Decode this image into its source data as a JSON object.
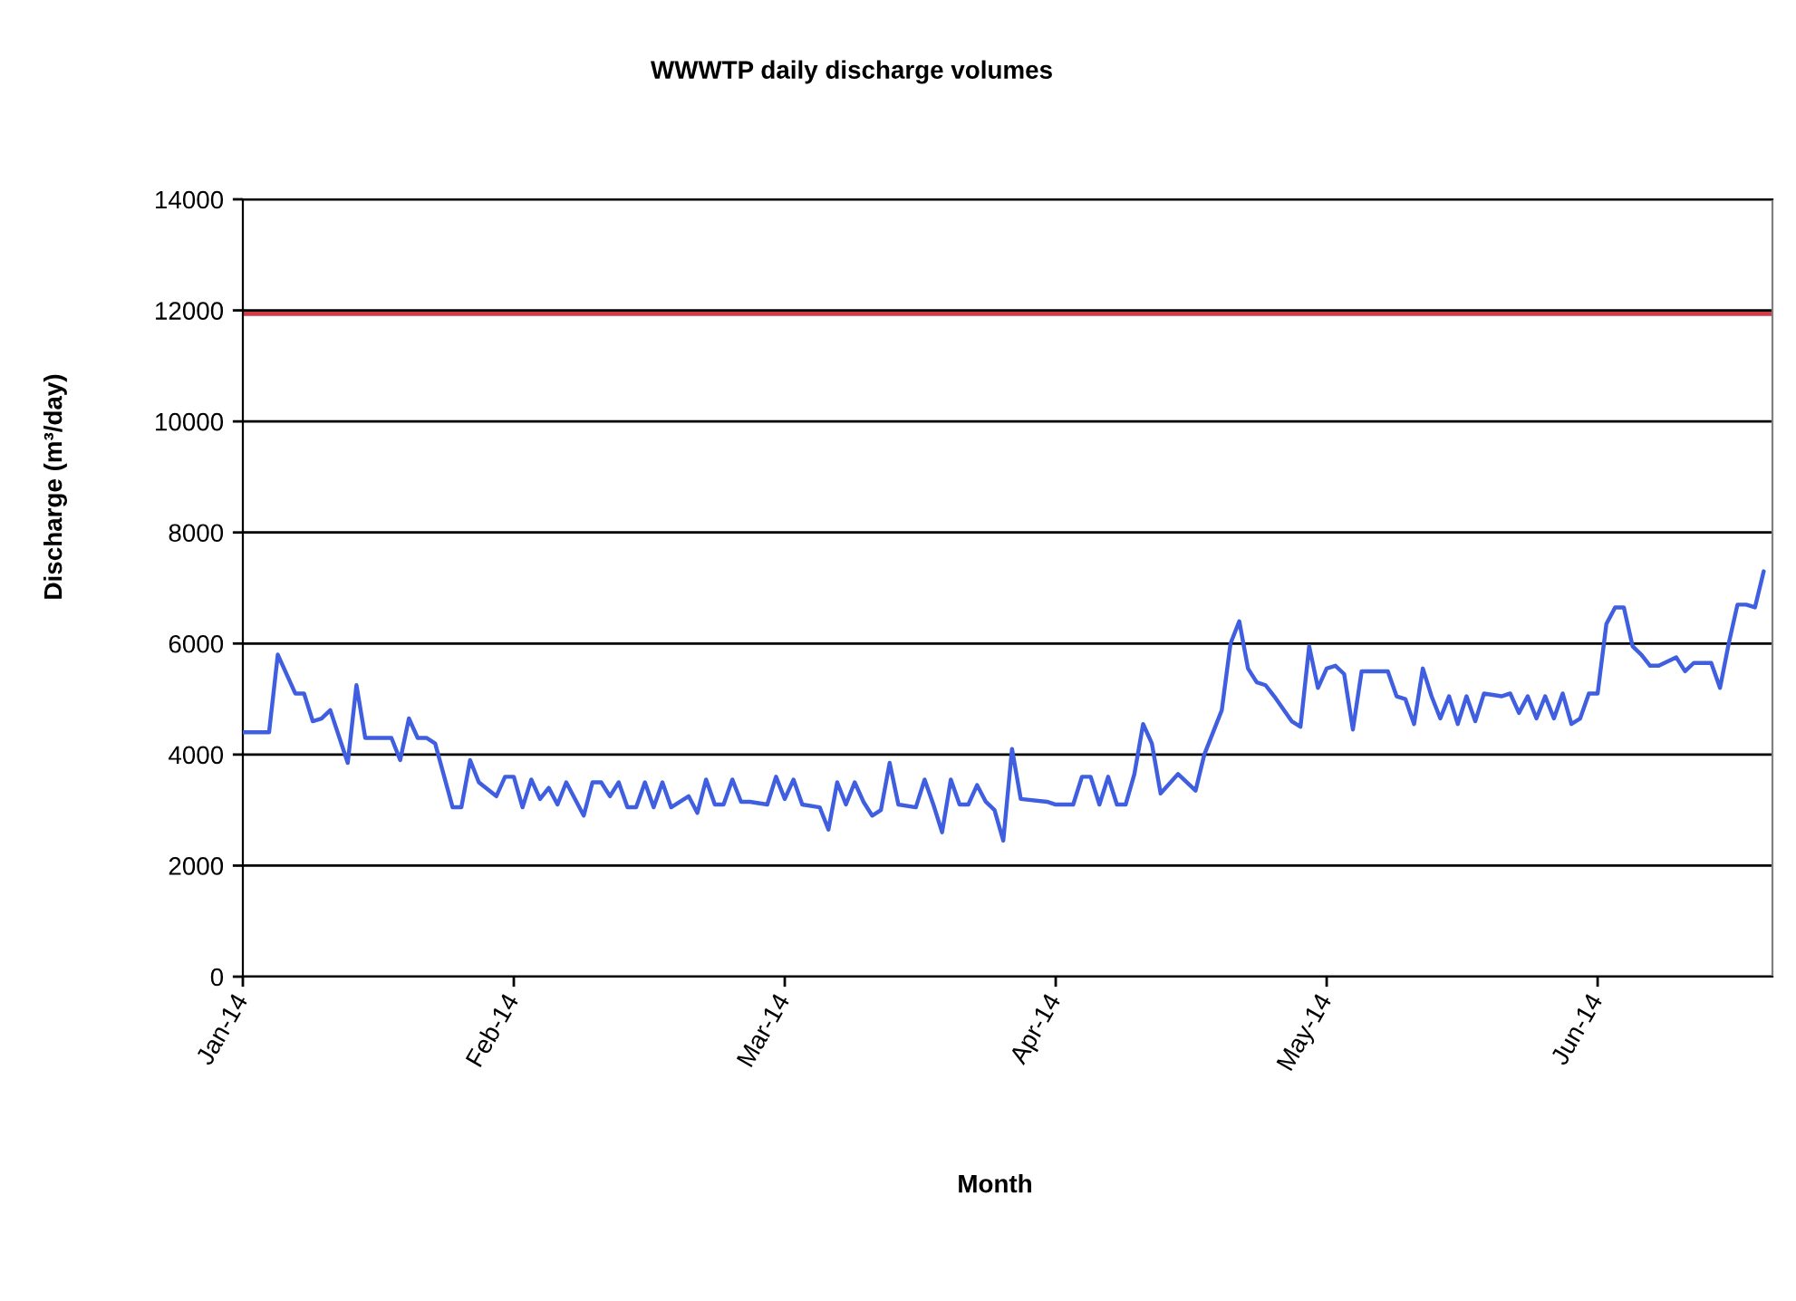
{
  "chart_data": {
    "type": "line",
    "title": "WWWTP daily discharge volumes",
    "xlabel": "Month",
    "ylabel": "Discharge (m³/day)",
    "x": [
      "2014-01-01",
      "2014-01-04",
      "2014-01-05",
      "2014-01-07",
      "2014-01-08",
      "2014-01-09",
      "2014-01-10",
      "2014-01-11",
      "2014-01-13",
      "2014-01-14",
      "2014-01-15",
      "2014-01-18",
      "2014-01-19",
      "2014-01-20",
      "2014-01-21",
      "2014-01-22",
      "2014-01-23",
      "2014-01-25",
      "2014-01-26",
      "2014-01-27",
      "2014-01-28",
      "2014-01-30",
      "2014-01-31",
      "2014-02-01",
      "2014-02-02",
      "2014-02-03",
      "2014-02-04",
      "2014-02-05",
      "2014-02-06",
      "2014-02-07",
      "2014-02-09",
      "2014-02-10",
      "2014-02-11",
      "2014-02-12",
      "2014-02-13",
      "2014-02-14",
      "2014-02-15",
      "2014-02-16",
      "2014-02-17",
      "2014-02-18",
      "2014-02-19",
      "2014-02-21",
      "2014-02-22",
      "2014-02-23",
      "2014-02-24",
      "2014-02-25",
      "2014-02-26",
      "2014-02-27",
      "2014-02-28",
      "2014-03-02",
      "2014-03-03",
      "2014-03-04",
      "2014-03-05",
      "2014-03-06",
      "2014-03-08",
      "2014-03-09",
      "2014-03-10",
      "2014-03-11",
      "2014-03-12",
      "2014-03-13",
      "2014-03-14",
      "2014-03-15",
      "2014-03-16",
      "2014-03-17",
      "2014-03-19",
      "2014-03-20",
      "2014-03-21",
      "2014-03-22",
      "2014-03-23",
      "2014-03-24",
      "2014-03-25",
      "2014-03-26",
      "2014-03-27",
      "2014-03-28",
      "2014-03-29",
      "2014-03-30",
      "2014-03-31",
      "2014-04-03",
      "2014-04-04",
      "2014-04-06",
      "2014-04-07",
      "2014-04-08",
      "2014-04-09",
      "2014-04-10",
      "2014-04-11",
      "2014-04-12",
      "2014-04-13",
      "2014-04-14",
      "2014-04-15",
      "2014-04-16",
      "2014-04-18",
      "2014-04-20",
      "2014-04-21",
      "2014-04-23",
      "2014-04-24",
      "2014-04-25",
      "2014-04-26",
      "2014-04-27",
      "2014-04-28",
      "2014-04-29",
      "2014-05-01",
      "2014-05-02",
      "2014-05-03",
      "2014-05-04",
      "2014-05-05",
      "2014-05-06",
      "2014-05-07",
      "2014-05-08",
      "2014-05-09",
      "2014-05-12",
      "2014-05-13",
      "2014-05-14",
      "2014-05-15",
      "2014-05-16",
      "2014-05-17",
      "2014-05-18",
      "2014-05-19",
      "2014-05-20",
      "2014-05-21",
      "2014-05-22",
      "2014-05-23",
      "2014-05-25",
      "2014-05-26",
      "2014-05-27",
      "2014-05-28",
      "2014-05-29",
      "2014-05-30",
      "2014-05-31",
      "2014-06-01",
      "2014-06-02",
      "2014-06-03",
      "2014-06-04",
      "2014-06-05",
      "2014-06-06",
      "2014-06-07",
      "2014-06-08",
      "2014-06-09",
      "2014-06-10",
      "2014-06-11",
      "2014-06-12",
      "2014-06-14",
      "2014-06-15",
      "2014-06-16",
      "2014-06-18",
      "2014-06-19",
      "2014-06-20",
      "2014-06-21",
      "2014-06-22",
      "2014-06-23",
      "2014-06-24"
    ],
    "series": [
      {
        "color": "#3f5fe0",
        "values": [
          4400,
          4400,
          5800,
          5100,
          5100,
          4600,
          4650,
          4800,
          3850,
          5250,
          4300,
          4300,
          3900,
          4650,
          4300,
          4300,
          4200,
          3050,
          3050,
          3900,
          3500,
          3250,
          3600,
          3600,
          3050,
          3550,
          3200,
          3400,
          3100,
          3500,
          2900,
          3500,
          3500,
          3250,
          3500,
          3050,
          3050,
          3500,
          3050,
          3500,
          3050,
          3250,
          2950,
          3550,
          3100,
          3100,
          3550,
          3150,
          3150,
          3100,
          3600,
          3200,
          3550,
          3100,
          3050,
          2650,
          3500,
          3100,
          3500,
          3150,
          2900,
          3000,
          3850,
          3100,
          3050,
          3550,
          3100,
          2600,
          3550,
          3100,
          3100,
          3450,
          3150,
          3000,
          2450,
          4100,
          3200,
          3150,
          3100,
          3100,
          3600,
          3600,
          3100,
          3600,
          3100,
          3100,
          3650,
          4550,
          4200,
          3300,
          3650,
          3350,
          4000,
          4800,
          6000,
          6400,
          5550,
          5300,
          5250,
          5050,
          4600,
          4500,
          5950,
          5200,
          5550,
          5600,
          5450,
          4450,
          5500,
          5500,
          5050,
          5000,
          4550,
          5550,
          5050,
          4650,
          5050,
          4550,
          5050,
          4600,
          5100,
          5050,
          5100,
          4750,
          5050,
          4650,
          5050,
          4650,
          5100,
          4550,
          4650,
          5100,
          5100,
          6350,
          6650,
          6650,
          5950,
          5800,
          5600,
          5600,
          5750,
          5500,
          5650,
          5650,
          5200,
          6000,
          6700,
          6700,
          6650,
          7300
        ]
      }
    ],
    "xlim": [
      "2014-01-01",
      "2014-06-25"
    ],
    "xticks": [
      {
        "value": "2014-01-01",
        "label": "Jan-14"
      },
      {
        "value": "2014-02-01",
        "label": "Feb-14"
      },
      {
        "value": "2014-03-04",
        "label": "Mar-14"
      },
      {
        "value": "2014-04-04",
        "label": "Apr-14"
      },
      {
        "value": "2014-05-05",
        "label": "May-14"
      },
      {
        "value": "2014-06-05",
        "label": "Jun-14"
      }
    ],
    "ylim": [
      0,
      14000
    ],
    "yticks": [
      0,
      2000,
      4000,
      6000,
      8000,
      10000,
      12000,
      14000
    ],
    "grid": "y",
    "line_style": "solid",
    "ref_lines": [
      {
        "axis": "y",
        "value": 11950,
        "color": "#d23c46"
      }
    ]
  }
}
